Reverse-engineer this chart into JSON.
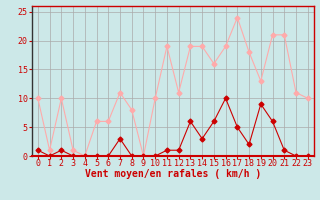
{
  "xlabel": "Vent moyen/en rafales ( km/h )",
  "x": [
    0,
    1,
    2,
    3,
    4,
    5,
    6,
    7,
    8,
    9,
    10,
    11,
    12,
    13,
    14,
    15,
    16,
    17,
    18,
    19,
    20,
    21,
    22,
    23
  ],
  "vent_moyen": [
    1,
    0,
    1,
    0,
    0,
    0,
    0,
    3,
    0,
    0,
    0,
    1,
    1,
    6,
    3,
    6,
    10,
    5,
    2,
    9,
    6,
    1,
    0,
    0
  ],
  "rafales": [
    10,
    1,
    10,
    1,
    0,
    6,
    6,
    11,
    8,
    0,
    10,
    19,
    11,
    19,
    19,
    16,
    19,
    24,
    18,
    13,
    21,
    21,
    11,
    10
  ],
  "color_moyen": "#cc0000",
  "color_rafales": "#ffaaaa",
  "bg_color": "#cce8e8",
  "grid_color": "#aaaaaa",
  "ylim": [
    0,
    26
  ],
  "yticks": [
    0,
    5,
    10,
    15,
    20,
    25
  ],
  "xticks": [
    0,
    1,
    2,
    3,
    4,
    5,
    6,
    7,
    8,
    9,
    10,
    11,
    12,
    13,
    14,
    15,
    16,
    17,
    18,
    19,
    20,
    21,
    22,
    23
  ],
  "tick_fontsize": 6,
  "xlabel_fontsize": 7,
  "marker": "D",
  "markersize": 2.5,
  "linewidth": 0.8
}
